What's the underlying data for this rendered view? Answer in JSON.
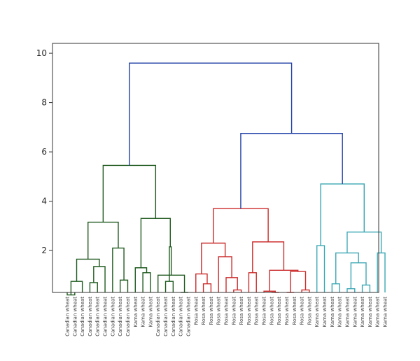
{
  "chart_data": {
    "type": "dendrogram",
    "title": "",
    "xlabel": "",
    "ylabel": "",
    "ylim": [
      0,
      10
    ],
    "yticks": [
      2,
      4,
      6,
      8,
      10
    ],
    "grid": false,
    "colors": {
      "canadian_cluster": "#1f5a1f",
      "rosa_cluster": "#cc2b2b",
      "kama_cluster": "#3aa7b4",
      "root": "#1f3fa6",
      "axis": "#333333"
    },
    "leaves": [
      "Canadian wheat",
      "Canadian wheat",
      "Canadian wheat",
      "Canadian wheat",
      "Canadian wheat",
      "Canadian wheat",
      "Canadian wheat",
      "Canadian wheat",
      "Canadian wheat",
      "Kama wheat",
      "Kama wheat",
      "Kama wheat",
      "Canadian wheat",
      "Canadian wheat",
      "Canadian wheat",
      "Canadian wheat",
      "Canadian wheat",
      "Rosa wheat",
      "Rosa wheat",
      "Rosa wheat",
      "Rosa wheat",
      "Rosa wheat",
      "Rosa wheat",
      "Rosa wheat",
      "Rosa wheat",
      "Rosa wheat",
      "Rosa wheat",
      "Rosa wheat",
      "Rosa wheat",
      "Rosa wheat",
      "Rosa wheat",
      "Rosa wheat",
      "Rosa wheat",
      "Kama wheat",
      "Kama wheat",
      "Kama wheat",
      "Kama wheat",
      "Kama wheat",
      "Kama wheat",
      "Kama wheat",
      "Kama wheat",
      "Kama wheat",
      "Kama wheat"
    ],
    "links": [
      {
        "a": 0,
        "b": 1,
        "h": 0.2,
        "color": "canadian_cluster"
      },
      {
        "a": "L0",
        "b": 2,
        "h": 0.75,
        "color": "canadian_cluster"
      },
      {
        "a": 3,
        "b": 4,
        "h": 0.7,
        "color": "canadian_cluster"
      },
      {
        "a": 5,
        "b": "L2",
        "h": 1.35,
        "color": "canadian_cluster"
      },
      {
        "a": "L1",
        "b": "L3",
        "h": 1.65,
        "color": "canadian_cluster"
      },
      {
        "a": 7,
        "b": 8,
        "h": 0.8,
        "color": "canadian_cluster"
      },
      {
        "a": 6,
        "b": "L5",
        "h": 2.1,
        "color": "canadian_cluster"
      },
      {
        "a": "L4",
        "b": "L6",
        "h": 3.15,
        "color": "canadian_cluster"
      },
      {
        "a": 10,
        "b": 11,
        "h": 1.1,
        "color": "canadian_cluster"
      },
      {
        "a": 9,
        "b": "L8",
        "h": 1.3,
        "color": "canadian_cluster"
      },
      {
        "a": 13,
        "b": 14,
        "h": 0.75,
        "color": "canadian_cluster"
      },
      {
        "a": 15,
        "b": 16,
        "h": 0.3,
        "color": "canadian_cluster"
      },
      {
        "a": 12,
        "b": "L11",
        "h": 1.0,
        "color": "canadian_cluster"
      },
      {
        "a": "L10",
        "b": "L12",
        "h": 2.15,
        "color": "canadian_cluster"
      },
      {
        "a": "L9",
        "b": "L13",
        "h": 3.3,
        "color": "canadian_cluster"
      },
      {
        "a": "L7",
        "b": "L14",
        "h": 5.45,
        "color": "canadian_cluster"
      },
      {
        "a": 18,
        "b": 19,
        "h": 0.65,
        "color": "rosa_cluster"
      },
      {
        "a": 17,
        "b": "L16",
        "h": 1.05,
        "color": "rosa_cluster"
      },
      {
        "a": 22,
        "b": 23,
        "h": 0.4,
        "color": "rosa_cluster"
      },
      {
        "a": 21,
        "b": "L18",
        "h": 0.9,
        "color": "rosa_cluster"
      },
      {
        "a": 20,
        "b": "L19",
        "h": 1.75,
        "color": "rosa_cluster"
      },
      {
        "a": "L17",
        "b": "L20",
        "h": 2.3,
        "color": "rosa_cluster"
      },
      {
        "a": 24,
        "b": 25,
        "h": 1.1,
        "color": "rosa_cluster"
      },
      {
        "a": 27,
        "b": 28,
        "h": 0.3,
        "color": "rosa_cluster"
      },
      {
        "a": 26,
        "b": "L23",
        "h": 0.35,
        "color": "rosa_cluster"
      },
      {
        "a": 29,
        "b": 30,
        "h": 0.3,
        "color": "rosa_cluster"
      },
      {
        "a": 31,
        "b": 32,
        "h": 0.4,
        "color": "rosa_cluster"
      },
      {
        "a": "L25",
        "b": "L26",
        "h": 1.15,
        "color": "rosa_cluster"
      },
      {
        "a": "L24",
        "b": "L27",
        "h": 1.2,
        "color": "rosa_cluster"
      },
      {
        "a": "L22",
        "b": "L28",
        "h": 2.35,
        "color": "rosa_cluster"
      },
      {
        "a": "L21",
        "b": "L29",
        "h": 3.7,
        "color": "rosa_cluster"
      },
      {
        "a": 33,
        "b": 34,
        "h": 2.2,
        "color": "kama_cluster"
      },
      {
        "a": 35,
        "b": 36,
        "h": 0.65,
        "color": "kama_cluster"
      },
      {
        "a": 37,
        "b": 38,
        "h": 0.45,
        "color": "kama_cluster"
      },
      {
        "a": 39,
        "b": 40,
        "h": 0.6,
        "color": "kama_cluster"
      },
      {
        "a": "L33",
        "b": "L34",
        "h": 1.5,
        "color": "kama_cluster"
      },
      {
        "a": "L32",
        "b": "L35",
        "h": 1.9,
        "color": "kama_cluster"
      },
      {
        "a": 41,
        "b": 42,
        "h": 1.9,
        "color": "kama_cluster"
      },
      {
        "a": "L36",
        "b": "L37",
        "h": 2.75,
        "color": "kama_cluster"
      },
      {
        "a": "L31",
        "b": "L38",
        "h": 4.7,
        "color": "kama_cluster"
      },
      {
        "a": "L30",
        "b": "L39",
        "h": 6.75,
        "color": "root"
      },
      {
        "a": "L15",
        "b": "L40",
        "h": 9.6,
        "color": "root"
      }
    ]
  }
}
